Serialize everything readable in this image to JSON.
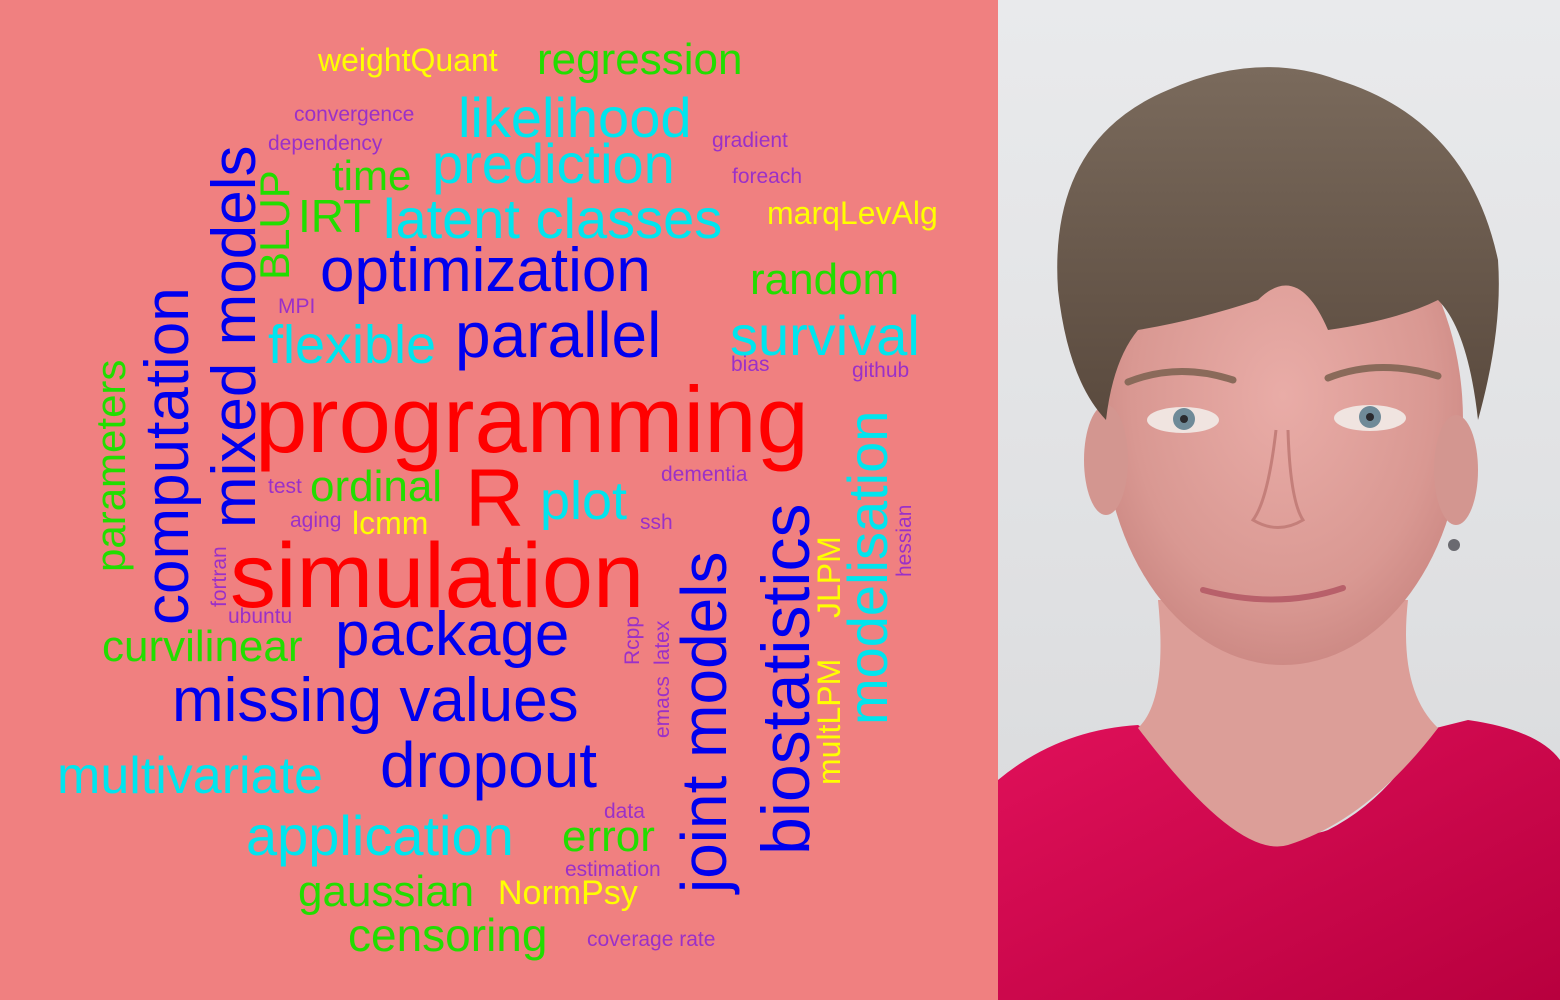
{
  "colors": {
    "background": "#f08080",
    "red": "#ff0000",
    "blue": "#0000ee",
    "cyan": "#00e5ee",
    "green": "#22dd00",
    "yellow": "#ffff00",
    "purple": "#9b30c8"
  },
  "words": {
    "programming": "programming",
    "simulation": "simulation",
    "R": "R",
    "optimization": "optimization",
    "parallel": "parallel",
    "package": "package",
    "missing_values": "missing values",
    "dropout": "dropout",
    "mixed_models": "mixed models",
    "computation": "computation",
    "joint_models": "joint models",
    "biostatistics": "biostatistics",
    "likelihood": "likelihood",
    "prediction": "prediction",
    "latent_classes": "latent classes",
    "flexible": "flexible",
    "survival": "survival",
    "plot": "plot",
    "multivariate": "multivariate",
    "application": "application",
    "modelisation": "modelisation",
    "regression": "regression",
    "time": "time",
    "IRT": "IRT",
    "BLUP": "BLUP",
    "random": "random",
    "parameters": "parameters",
    "ordinal": "ordinal",
    "curvilinear": "curvilinear",
    "error": "error",
    "gaussian": "gaussian",
    "censoring": "censoring",
    "weightQuant": "weightQuant",
    "marqLevAlg": "marqLevAlg",
    "lcmm": "lcmm",
    "JLPM": "JLPM",
    "multLPM": "multLPM",
    "NormPsy": "NormPsy",
    "convergence": "convergence",
    "dependency": "dependency",
    "gradient": "gradient",
    "foreach": "foreach",
    "MPI": "MPI",
    "bias": "bias",
    "github": "github",
    "dementia": "dementia",
    "test": "test",
    "aging": "aging",
    "ssh": "ssh",
    "hessian": "hessian",
    "fortran": "fortran",
    "ubuntu": "ubuntu",
    "Rcpp": "Rcpp",
    "latex": "latex",
    "emacs": "emacs",
    "data": "data",
    "estimation": "estimation",
    "coverage_rate": "coverage rate"
  }
}
